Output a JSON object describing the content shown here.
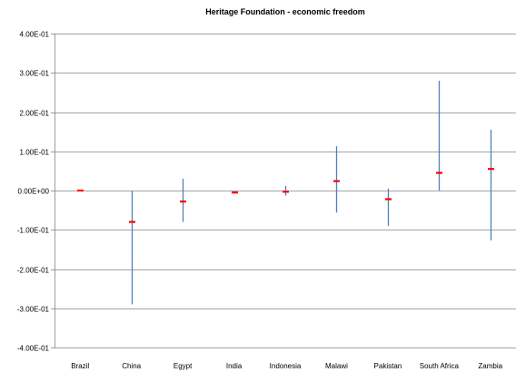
{
  "chart_data": {
    "type": "errorbar",
    "title": "Heritage Foundation - economic freedom",
    "xlabel": "",
    "ylabel": "",
    "ylim": [
      -0.4,
      0.4
    ],
    "yticks": [
      0.4,
      0.3,
      0.2,
      0.1,
      0.0,
      -0.1,
      -0.2,
      -0.3,
      -0.4
    ],
    "ytick_labels": [
      "4.00E-01",
      "3.00E-01",
      "2.00E-01",
      "1.00E-01",
      "0.00E+00",
      "-1.00E-01",
      "-2.00E-01",
      "-3.00E-01",
      "-4.00E-01"
    ],
    "grid": true,
    "categories": [
      "Brazil",
      "China",
      "Egypt",
      "India",
      "Indonesia",
      "Malawi",
      "Pakistan",
      "South Africa",
      "Zambia"
    ],
    "series": [
      {
        "estimate": [
          0.0,
          -0.08,
          -0.028,
          -0.005,
          -0.003,
          0.024,
          -0.022,
          0.045,
          0.055
        ],
        "lower": [
          0.0,
          -0.29,
          -0.08,
          -0.008,
          -0.013,
          -0.056,
          -0.09,
          0.0,
          -0.127
        ],
        "upper": [
          0.0,
          0.0,
          0.03,
          -0.003,
          0.012,
          0.113,
          0.005,
          0.28,
          0.155
        ]
      }
    ],
    "colors": {
      "estimate": "#ff0000",
      "interval": "#4f81bd",
      "grid": "#868686",
      "axis": "#868686"
    }
  }
}
